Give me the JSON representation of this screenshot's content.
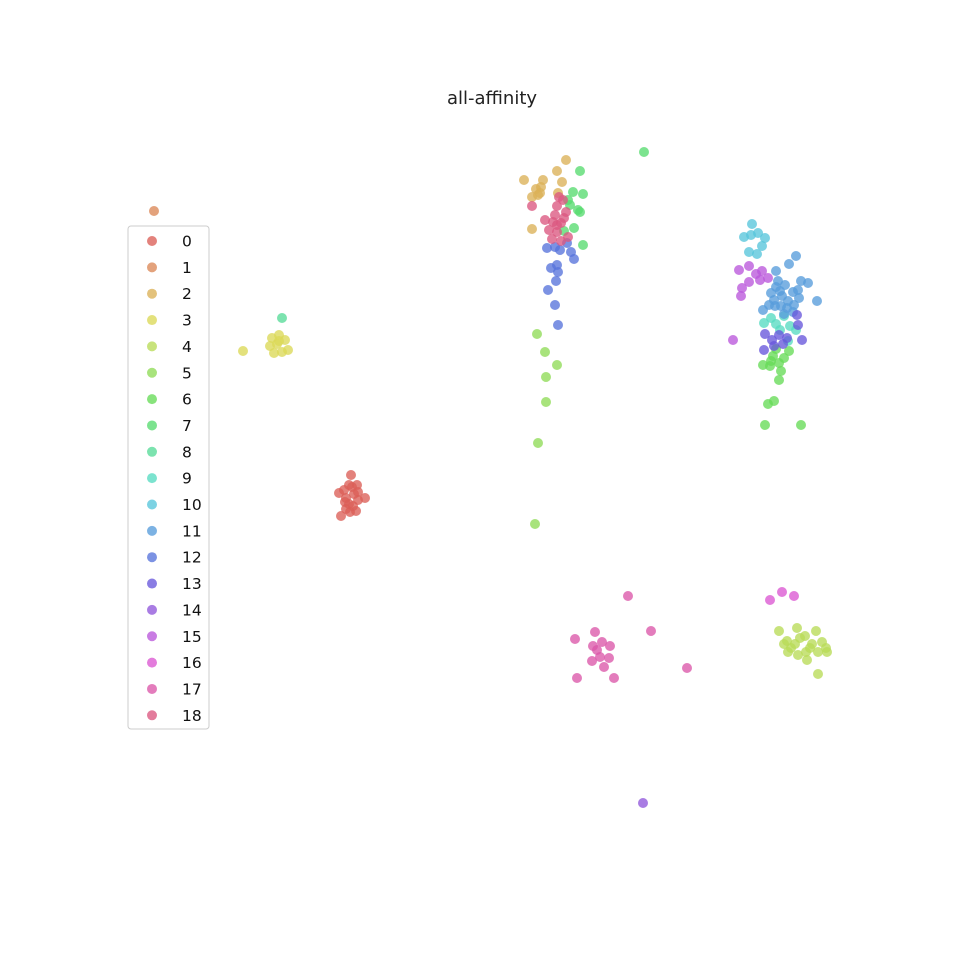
{
  "chart_data": {
    "type": "scatter",
    "title": "all-affinity",
    "xlabel": "",
    "ylabel": "",
    "axes_visible": false,
    "grid": false,
    "legend_position": "left",
    "legend": [
      "0",
      "1",
      "2",
      "3",
      "4",
      "5",
      "6",
      "7",
      "8",
      "9",
      "10",
      "11",
      "12",
      "13",
      "14",
      "15",
      "16",
      "17",
      "18"
    ],
    "colors": [
      "#db5f57",
      "#db8857",
      "#dbb157",
      "#dbd957",
      "#b9db57",
      "#90db57",
      "#67db57",
      "#57db6f",
      "#57db98",
      "#57dbc1",
      "#57c5db",
      "#579cdb",
      "#5773db",
      "#6857db",
      "#9157db",
      "#ba57db",
      "#db57d2",
      "#db57a9",
      "#db5780"
    ],
    "series": [
      {
        "name": "0",
        "points": [
          [
            351,
            475
          ],
          [
            344,
            490
          ],
          [
            352,
            487
          ],
          [
            357,
            485
          ],
          [
            339,
            493
          ],
          [
            346,
            498
          ],
          [
            354,
            494
          ],
          [
            349,
            504
          ],
          [
            358,
            500
          ],
          [
            346,
            509
          ],
          [
            356,
            511
          ],
          [
            341,
            516
          ],
          [
            350,
            512
          ],
          [
            365,
            498
          ],
          [
            353,
            506
          ],
          [
            345,
            502
          ],
          [
            358,
            492
          ],
          [
            349,
            485
          ]
        ]
      },
      {
        "name": "1",
        "points": [
          [
            154,
            211
          ]
        ]
      },
      {
        "name": "2",
        "points": [
          [
            524,
            180
          ],
          [
            543,
            180
          ],
          [
            536,
            189
          ],
          [
            541,
            187
          ],
          [
            532,
            197
          ],
          [
            538,
            195
          ],
          [
            532,
            229
          ],
          [
            557,
            171
          ],
          [
            566,
            160
          ],
          [
            562,
            182
          ],
          [
            558,
            193
          ],
          [
            540,
            193
          ]
        ]
      },
      {
        "name": "3",
        "points": [
          [
            272,
            338
          ],
          [
            279,
            335
          ],
          [
            285,
            340
          ],
          [
            270,
            346
          ],
          [
            277,
            344
          ],
          [
            288,
            350
          ],
          [
            274,
            353
          ],
          [
            282,
            352
          ],
          [
            243,
            351
          ],
          [
            279,
            341
          ]
        ]
      },
      {
        "name": "4",
        "points": [
          [
            779,
            631
          ],
          [
            787,
            641
          ],
          [
            797,
            628
          ],
          [
            805,
            636
          ],
          [
            812,
            644
          ],
          [
            816,
            631
          ],
          [
            791,
            648
          ],
          [
            798,
            655
          ],
          [
            807,
            660
          ],
          [
            818,
            652
          ],
          [
            826,
            648
          ],
          [
            827,
            652
          ],
          [
            818,
            674
          ],
          [
            806,
            652
          ],
          [
            795,
            644
          ],
          [
            784,
            644
          ],
          [
            810,
            648
          ],
          [
            822,
            642
          ],
          [
            800,
            638
          ],
          [
            788,
            652
          ]
        ]
      },
      {
        "name": "5",
        "points": [
          [
            537,
            334
          ],
          [
            545,
            352
          ],
          [
            557,
            365
          ],
          [
            546,
            377
          ],
          [
            546,
            402
          ],
          [
            538,
            443
          ],
          [
            535,
            524
          ]
        ]
      },
      {
        "name": "6",
        "points": [
          [
            763,
            365
          ],
          [
            770,
            366
          ],
          [
            779,
            363
          ],
          [
            773,
            356
          ],
          [
            784,
            358
          ],
          [
            776,
            349
          ],
          [
            781,
            371
          ],
          [
            779,
            380
          ],
          [
            768,
            404
          ],
          [
            774,
            401
          ],
          [
            765,
            425
          ],
          [
            801,
            425
          ],
          [
            789,
            351
          ],
          [
            771,
            361
          ]
        ]
      },
      {
        "name": "7",
        "points": [
          [
            644,
            152
          ],
          [
            580,
            171
          ],
          [
            573,
            192
          ],
          [
            583,
            194
          ],
          [
            568,
            200
          ],
          [
            578,
            210
          ],
          [
            580,
            212
          ],
          [
            574,
            228
          ],
          [
            564,
            231
          ],
          [
            583,
            245
          ],
          [
            570,
            205
          ]
        ]
      },
      {
        "name": "8",
        "points": [
          [
            282,
            318
          ]
        ]
      },
      {
        "name": "9",
        "points": [
          [
            771,
            318
          ],
          [
            776,
            324
          ],
          [
            784,
            316
          ],
          [
            790,
            326
          ],
          [
            796,
            330
          ],
          [
            788,
            341
          ],
          [
            764,
            323
          ],
          [
            780,
            330
          ]
        ]
      },
      {
        "name": "10",
        "points": [
          [
            752,
            224
          ],
          [
            744,
            237
          ],
          [
            751,
            235
          ],
          [
            758,
            233
          ],
          [
            765,
            238
          ],
          [
            749,
            252
          ],
          [
            757,
            254
          ],
          [
            762,
            246
          ]
        ]
      },
      {
        "name": "11",
        "points": [
          [
            776,
            271
          ],
          [
            789,
            264
          ],
          [
            796,
            256
          ],
          [
            778,
            281
          ],
          [
            785,
            285
          ],
          [
            776,
            287
          ],
          [
            793,
            292
          ],
          [
            782,
            296
          ],
          [
            788,
            301
          ],
          [
            775,
            306
          ],
          [
            799,
            298
          ],
          [
            769,
            305
          ],
          [
            763,
            310
          ],
          [
            784,
            314
          ],
          [
            793,
            312
          ],
          [
            808,
            283
          ],
          [
            801,
            281
          ],
          [
            817,
            301
          ],
          [
            774,
            300
          ],
          [
            780,
            291
          ],
          [
            794,
            305
          ],
          [
            787,
            308
          ],
          [
            771,
            293
          ],
          [
            798,
            290
          ],
          [
            781,
            306
          ]
        ]
      },
      {
        "name": "12",
        "points": [
          [
            547,
            248
          ],
          [
            555,
            247
          ],
          [
            560,
            250
          ],
          [
            567,
            243
          ],
          [
            571,
            252
          ],
          [
            574,
            259
          ],
          [
            551,
            268
          ],
          [
            557,
            265
          ],
          [
            558,
            272
          ],
          [
            556,
            281
          ],
          [
            548,
            290
          ],
          [
            555,
            305
          ],
          [
            558,
            325
          ]
        ]
      },
      {
        "name": "13",
        "points": [
          [
            765,
            334
          ],
          [
            772,
            340
          ],
          [
            779,
            335
          ],
          [
            787,
            338
          ],
          [
            797,
            315
          ],
          [
            798,
            325
          ],
          [
            802,
            340
          ],
          [
            764,
            350
          ],
          [
            774,
            346
          ],
          [
            783,
            344
          ]
        ]
      },
      {
        "name": "14",
        "points": [
          [
            643,
            803
          ]
        ]
      },
      {
        "name": "15",
        "points": [
          [
            739,
            270
          ],
          [
            749,
            266
          ],
          [
            756,
            274
          ],
          [
            762,
            271
          ],
          [
            749,
            282
          ],
          [
            742,
            288
          ],
          [
            741,
            296
          ],
          [
            760,
            280
          ],
          [
            768,
            278
          ],
          [
            733,
            340
          ]
        ]
      },
      {
        "name": "16",
        "points": [
          [
            782,
            592
          ],
          [
            770,
            600
          ],
          [
            794,
            596
          ]
        ]
      },
      {
        "name": "17",
        "points": [
          [
            628,
            596
          ],
          [
            651,
            631
          ],
          [
            595,
            632
          ],
          [
            602,
            642
          ],
          [
            575,
            639
          ],
          [
            593,
            646
          ],
          [
            610,
            646
          ],
          [
            597,
            650
          ],
          [
            600,
            657
          ],
          [
            609,
            658
          ],
          [
            592,
            661
          ],
          [
            604,
            667
          ],
          [
            687,
            668
          ],
          [
            577,
            678
          ],
          [
            614,
            678
          ]
        ]
      },
      {
        "name": "18",
        "points": [
          [
            559,
            197
          ],
          [
            563,
            200
          ],
          [
            557,
            206
          ],
          [
            566,
            212
          ],
          [
            555,
            215
          ],
          [
            564,
            218
          ],
          [
            553,
            222
          ],
          [
            561,
            223
          ],
          [
            545,
            220
          ],
          [
            549,
            230
          ],
          [
            557,
            232
          ],
          [
            552,
            239
          ],
          [
            561,
            241
          ],
          [
            568,
            237
          ],
          [
            532,
            206
          ],
          [
            557,
            225
          ]
        ]
      }
    ]
  }
}
